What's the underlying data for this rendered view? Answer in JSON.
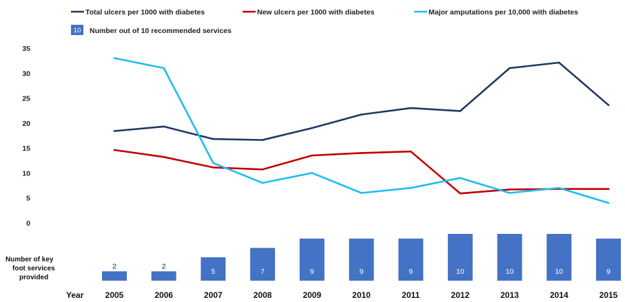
{
  "chart_data": {
    "type": "line",
    "x": [
      "2005",
      "2006",
      "2007",
      "2008",
      "2009",
      "2010",
      "2011",
      "2012",
      "2013",
      "2014",
      "2015"
    ],
    "ylim": [
      0,
      35
    ],
    "yticks": [
      "0",
      "5",
      "10",
      "15",
      "20",
      "25",
      "30",
      "35"
    ],
    "grid": false,
    "legend_position": "top",
    "series": [
      {
        "name": "Total ulcers per 1000 with diabetes",
        "color": "#1f3864",
        "values": [
          18.4,
          19.3,
          16.8,
          16.6,
          19.0,
          21.7,
          23.0,
          22.4,
          31.0,
          32.1,
          23.6
        ]
      },
      {
        "name": "New ulcers per 1000 with diabetes",
        "color": "#c00000",
        "values": [
          14.6,
          13.2,
          11.1,
          10.7,
          13.5,
          14.0,
          14.3,
          5.9,
          6.7,
          6.8,
          6.8
        ]
      },
      {
        "name": "Major amputations per 10,000 with diabetes",
        "color": "#1ebcf0",
        "values": [
          33.0,
          31.0,
          12.0,
          8.0,
          10.0,
          6.0,
          7.0,
          9.0,
          6.0,
          7.0,
          4.0
        ]
      }
    ],
    "services": {
      "legend_box_text": "10",
      "legend_label": "Number out of 10 recommended services",
      "label_lines": [
        "Number of key",
        "foot services",
        "provided"
      ],
      "values": [
        2,
        2,
        5,
        7,
        9,
        9,
        9,
        10,
        10,
        10,
        9
      ],
      "max": 10,
      "color": "#4472c4"
    },
    "year_label": "Year"
  }
}
